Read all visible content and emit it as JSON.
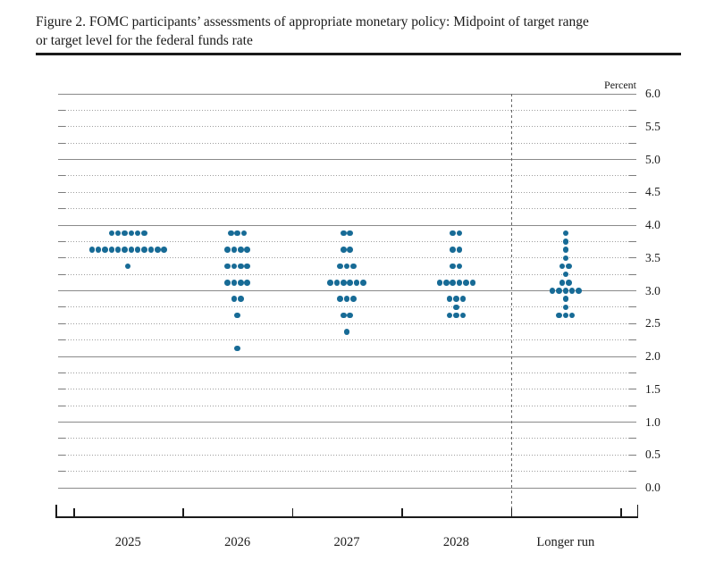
{
  "figure": {
    "title_line1": "Figure 2. FOMC participants’ assessments of appropriate monetary policy: Midpoint of target range",
    "title_line2": "or target level for the federal funds rate",
    "percent_label": "Percent"
  },
  "chart_data": {
    "type": "scatter",
    "title": "FOMC participants’ assessments of appropriate monetary policy: Midpoint of target range or target level for the federal funds rate",
    "ylabel": "Percent",
    "ylim": [
      0.0,
      6.0
    ],
    "ytick_interval": 0.25,
    "ytick_labels": [
      "6.0",
      "5.5",
      "5.0",
      "4.5",
      "4.0",
      "3.5",
      "3.0",
      "2.5",
      "2.0",
      "1.5",
      "1.0",
      "0.5",
      "0.0"
    ],
    "grid": "dotted lines every 0.25 percent, solid lines at integers",
    "legend_position": "none",
    "divider": "dashed vertical line between 2028 and Longer run",
    "categories": [
      "2025",
      "2026",
      "2027",
      "2028",
      "Longer run"
    ],
    "series": [
      {
        "name": "2025",
        "dots": [
          {
            "rate": 3.875,
            "count": 6
          },
          {
            "rate": 3.625,
            "count": 12
          },
          {
            "rate": 3.375,
            "count": 1
          }
        ]
      },
      {
        "name": "2026",
        "dots": [
          {
            "rate": 3.875,
            "count": 3
          },
          {
            "rate": 3.625,
            "count": 4
          },
          {
            "rate": 3.375,
            "count": 4
          },
          {
            "rate": 3.125,
            "count": 4
          },
          {
            "rate": 2.875,
            "count": 2
          },
          {
            "rate": 2.625,
            "count": 1
          },
          {
            "rate": 2.125,
            "count": 1
          }
        ]
      },
      {
        "name": "2027",
        "dots": [
          {
            "rate": 3.875,
            "count": 2
          },
          {
            "rate": 3.625,
            "count": 2
          },
          {
            "rate": 3.375,
            "count": 3
          },
          {
            "rate": 3.125,
            "count": 6
          },
          {
            "rate": 2.875,
            "count": 3
          },
          {
            "rate": 2.625,
            "count": 2
          },
          {
            "rate": 2.375,
            "count": 1
          }
        ]
      },
      {
        "name": "2028",
        "dots": [
          {
            "rate": 3.875,
            "count": 2
          },
          {
            "rate": 3.625,
            "count": 2
          },
          {
            "rate": 3.375,
            "count": 2
          },
          {
            "rate": 3.125,
            "count": 6
          },
          {
            "rate": 2.875,
            "count": 3
          },
          {
            "rate": 2.75,
            "count": 1
          },
          {
            "rate": 2.625,
            "count": 3
          }
        ]
      },
      {
        "name": "Longer run",
        "dots": [
          {
            "rate": 3.875,
            "count": 1
          },
          {
            "rate": 3.75,
            "count": 1
          },
          {
            "rate": 3.625,
            "count": 1
          },
          {
            "rate": 3.5,
            "count": 1
          },
          {
            "rate": 3.375,
            "count": 2
          },
          {
            "rate": 3.25,
            "count": 1
          },
          {
            "rate": 3.125,
            "count": 2
          },
          {
            "rate": 3.0,
            "count": 5
          },
          {
            "rate": 2.875,
            "count": 1
          },
          {
            "rate": 2.75,
            "count": 1
          },
          {
            "rate": 2.625,
            "count": 3
          }
        ]
      }
    ],
    "colors": {
      "dot": "#176b96",
      "grid_solid": "#8a8a8a",
      "grid_dotted": "#9e9e9e",
      "axis": "#1a1a1a",
      "divider": "#666666"
    }
  }
}
